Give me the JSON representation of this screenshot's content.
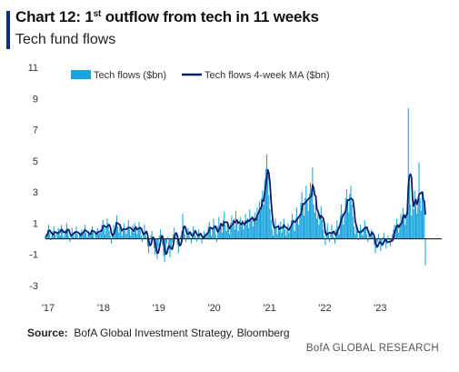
{
  "header": {
    "title_prefix": "Chart 12: 1",
    "title_sup": "st",
    "title_suffix": " outflow from tech in 11 weeks",
    "subtitle": "Tech fund flows"
  },
  "colors": {
    "accent": "#0b2d86",
    "bars": "#1aa3de",
    "line": "#0b1f6b",
    "zero_line": "#222222"
  },
  "chart_data": {
    "type": "bar",
    "title": "Chart 12: 1st outflow from tech in 11 weeks",
    "subtitle": "Tech fund flows",
    "x_tick_labels": [
      "'17",
      "'18",
      "'19",
      "'20",
      "'21",
      "'22",
      "'23"
    ],
    "y_tick_labels": [
      "11",
      "9",
      "7",
      "5",
      "3",
      "1",
      "-1",
      "-3"
    ],
    "ylim": [
      -3,
      11
    ],
    "legend_position": "top",
    "series": [
      {
        "name": "Tech flows ($bn)",
        "kind": "bar",
        "start_year": 2017,
        "frequency": "weekly",
        "values": [
          0.1,
          0.3,
          0.6,
          0.9,
          0.4,
          -0.1,
          0.2,
          0.5,
          0.8,
          0.3,
          0.0,
          0.4,
          0.7,
          0.6,
          0.2,
          0.9,
          0.5,
          0.1,
          0.3,
          0.6,
          1.0,
          0.5,
          0.2,
          -0.2,
          0.3,
          0.7,
          0.4,
          0.1,
          0.5,
          0.8,
          0.3,
          0.0,
          0.2,
          0.4,
          0.6,
          0.3,
          0.5,
          0.9,
          0.4,
          0.1,
          0.3,
          0.5,
          0.2,
          0.6,
          0.8,
          0.4,
          0.0,
          0.3,
          0.5,
          0.7,
          0.3,
          0.4,
          0.6,
          0.9,
          1.2,
          0.7,
          0.3,
          0.8,
          1.3,
          1.0,
          0.5,
          0.2,
          -0.3,
          0.4,
          0.9,
          0.6,
          1.1,
          1.5,
          0.8,
          0.4,
          0.9,
          0.6,
          0.2,
          0.7,
          1.0,
          0.5,
          0.3,
          0.8,
          1.2,
          0.6,
          0.2,
          0.5,
          0.9,
          0.4,
          1.0,
          0.7,
          0.3,
          0.6,
          1.1,
          0.8,
          0.2,
          -0.2,
          0.4,
          0.9,
          0.5,
          0.1,
          -0.5,
          -0.9,
          -0.4,
          0.2,
          0.5,
          0.1,
          -0.6,
          -1.0,
          -0.8,
          -1.3,
          -0.5,
          0.2,
          0.6,
          0.3,
          -0.4,
          -1.1,
          -1.5,
          -0.9,
          -0.3,
          0.1,
          -0.7,
          -1.2,
          -0.6,
          -0.2,
          0.3,
          0.7,
          0.4,
          0.1,
          -0.4,
          -0.9,
          -0.5,
          0.2,
          0.5,
          1.6,
          0.8,
          0.3,
          -0.2,
          0.4,
          0.7,
          0.5,
          0.1,
          -0.3,
          0.4,
          0.8,
          0.6,
          0.2,
          -0.2,
          0.3,
          0.6,
          0.4,
          0.0,
          -0.3,
          0.2,
          0.5,
          0.3,
          0.1,
          0.4,
          0.8,
          1.1,
          0.6,
          0.2,
          0.7,
          1.3,
          0.9,
          0.3,
          -0.2,
          0.8,
          1.4,
          0.7,
          1.0,
          0.4,
          1.2,
          1.7,
          0.9,
          0.5,
          1.1,
          0.7,
          0.3,
          1.0,
          1.5,
          0.8,
          1.3,
          0.6,
          1.8,
          1.1,
          0.5,
          0.9,
          1.4,
          0.8,
          1.2,
          0.6,
          1.0,
          1.6,
          0.9,
          1.3,
          0.7,
          1.9,
          1.2,
          1.5,
          0.8,
          1.1,
          1.7,
          1.3,
          2.0,
          1.5,
          2.4,
          1.8,
          2.6,
          3.1,
          2.2,
          3.8,
          4.5,
          5.4,
          4.0,
          2.8,
          1.9,
          1.2,
          0.6,
          0.2,
          0.8,
          1.3,
          0.7,
          0.3,
          0.9,
          0.5,
          1.1,
          0.4,
          0.8,
          1.3,
          0.6,
          0.2,
          0.7,
          1.0,
          0.4,
          0.8,
          1.2,
          1.6,
          1.0,
          0.5,
          1.3,
          2.0,
          1.4,
          0.9,
          1.6,
          2.3,
          3.0,
          2.1,
          1.5,
          2.6,
          3.4,
          2.4,
          1.8,
          2.9,
          3.6,
          2.7,
          4.6,
          2.2,
          1.7,
          2.5,
          1.3,
          1.6,
          0.9,
          1.4,
          2.1,
          1.2,
          0.6,
          0.2,
          -0.4,
          0.5,
          1.0,
          0.3,
          -0.2,
          0.4,
          0.9,
          0.5,
          0.1,
          -0.3,
          0.6,
          1.2,
          0.8,
          0.3,
          1.5,
          2.2,
          1.6,
          0.9,
          1.8,
          2.6,
          3.2,
          2.4,
          1.7,
          2.9,
          3.4,
          2.2,
          1.4,
          0.8,
          0.3,
          1.0,
          0.5,
          -0.1,
          0.4,
          0.9,
          0.6,
          0.2,
          0.7,
          1.2,
          0.8,
          0.3,
          -0.2,
          0.5,
          0.2,
          0.6,
          0.4,
          0.1,
          -0.4,
          -0.9,
          -0.6,
          -0.2,
          0.3,
          -0.3,
          -0.8,
          -0.5,
          0.1,
          0.4,
          -0.2,
          -0.6,
          -0.3,
          0.2,
          -0.1,
          -0.5,
          -0.2,
          0.3,
          0.6,
          0.9,
          0.5,
          1.3,
          0.8,
          0.4,
          1.0,
          1.6,
          1.1,
          2.0,
          1.4,
          0.9,
          1.7,
          2.4,
          8.4,
          3.6,
          2.2,
          1.5,
          2.8,
          1.9,
          3.1,
          2.3,
          1.6,
          2.5,
          4.9,
          2.6,
          1.8,
          2.7,
          3.0,
          2.2,
          -1.7
        ]
      },
      {
        "name": "Tech flows 4-week MA ($bn)",
        "kind": "line",
        "note": "4-week moving average of Tech flows ($bn)"
      }
    ],
    "source": "BofA Global Investment Strategy, Bloomberg"
  },
  "source_label": "Source:",
  "source_text": "BofA Global Investment Strategy, Bloomberg",
  "footer_brand": "BofA GLOBAL RESEARCH"
}
